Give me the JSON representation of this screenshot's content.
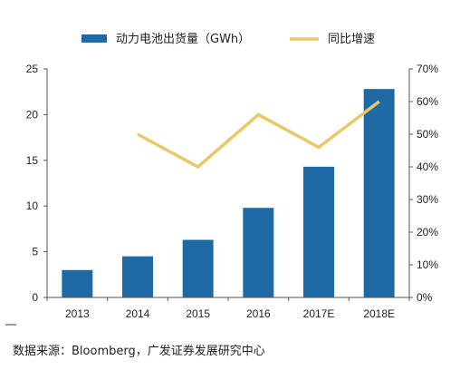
{
  "chart_data": {
    "type": "bar",
    "categories": [
      "2013",
      "2014",
      "2015",
      "2016",
      "2017E",
      "2018E"
    ],
    "series": [
      {
        "name": "动力电池出货量（GWh）",
        "type": "bar",
        "axis": "left",
        "color": "#1f6aa5",
        "values": [
          3.0,
          4.5,
          6.3,
          9.8,
          14.3,
          22.8
        ]
      },
      {
        "name": "同比增速",
        "type": "line",
        "axis": "right",
        "color": "#e8c868",
        "values": [
          null,
          50,
          40,
          56,
          46,
          60
        ]
      }
    ],
    "y_left": {
      "min": 0,
      "max": 25,
      "ticks": [
        0,
        5,
        10,
        15,
        20,
        25
      ]
    },
    "y_right": {
      "min": 0,
      "max": 70,
      "ticks": [
        "0%",
        "10%",
        "20%",
        "30%",
        "40%",
        "50%",
        "60%",
        "70%"
      ]
    },
    "legend_position": "top",
    "grid": false
  },
  "source_text": "数据来源：Bloomberg，广发证券发展研究中心"
}
